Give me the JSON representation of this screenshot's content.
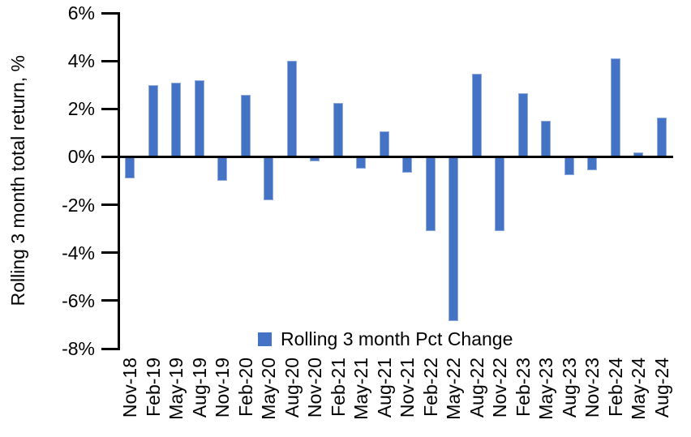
{
  "chart_data": {
    "type": "bar",
    "title": "",
    "xlabel": "",
    "ylabel": "Rolling 3 month total return, %",
    "legend": "Rolling 3 month Pct Change",
    "legend_position": "bottom-center",
    "grid": false,
    "ylim": [
      -8,
      6
    ],
    "ytick_values": [
      6,
      4,
      2,
      0,
      -2,
      -4,
      -6,
      -8
    ],
    "ytick_labels": [
      "6%",
      "4%",
      "2%",
      "0%",
      "-2%",
      "-4%",
      "-6%",
      "-8%"
    ],
    "categories": [
      "Nov-18",
      "Feb-19",
      "May-19",
      "Aug-19",
      "Nov-19",
      "Feb-20",
      "May-20",
      "Aug-20",
      "Nov-20",
      "Feb-21",
      "May-21",
      "Aug-21",
      "Nov-21",
      "Feb-22",
      "May-22",
      "Aug-22",
      "Nov-22",
      "Feb-23",
      "May-23",
      "Aug-23",
      "Nov-23",
      "Feb-24",
      "May-24",
      "Aug-24"
    ],
    "values": [
      -0.9,
      3.0,
      3.1,
      3.2,
      -1.0,
      2.6,
      -1.8,
      4.0,
      -0.2,
      2.25,
      -0.5,
      1.05,
      -0.65,
      -3.1,
      -6.85,
      3.45,
      -3.1,
      2.65,
      1.5,
      -0.75,
      -0.55,
      4.1,
      0.2,
      1.65
    ],
    "colors": {
      "bar_fill": "#4472C4",
      "bar_border": "#8FAADC",
      "axis": "#000000",
      "text": "#000000",
      "background": "#FFFFFF"
    }
  }
}
